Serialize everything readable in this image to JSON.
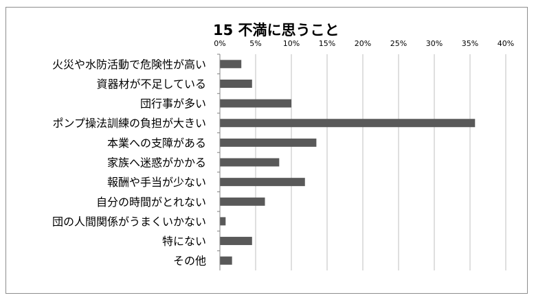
{
  "chart_data": {
    "type": "bar",
    "orientation": "horizontal",
    "title": "15 不満に思うこと",
    "categories": [
      "火災や水防活動で危険性が高い",
      "資器材が不足している",
      "団行事が多い",
      "ポンプ操法訓練の負担が大きい",
      "本業への支障がある",
      "家族へ迷惑がかかる",
      "報酬や手当が少ない",
      "自分の時間がとれない",
      "団の人間関係がうまくいかない",
      "特にない",
      "その他"
    ],
    "values": [
      3.0,
      4.5,
      10.0,
      35.7,
      13.5,
      8.3,
      11.9,
      6.3,
      0.8,
      4.5,
      1.7
    ],
    "xlim": [
      0,
      40
    ],
    "xticks": [
      "0%",
      "5%",
      "10%",
      "15%",
      "20%",
      "25%",
      "30%",
      "35%",
      "40%"
    ],
    "xaxis_position": "top",
    "grid": true,
    "bar_color": "#595959",
    "grid_color": "#bfbfbf",
    "legend": "none"
  }
}
